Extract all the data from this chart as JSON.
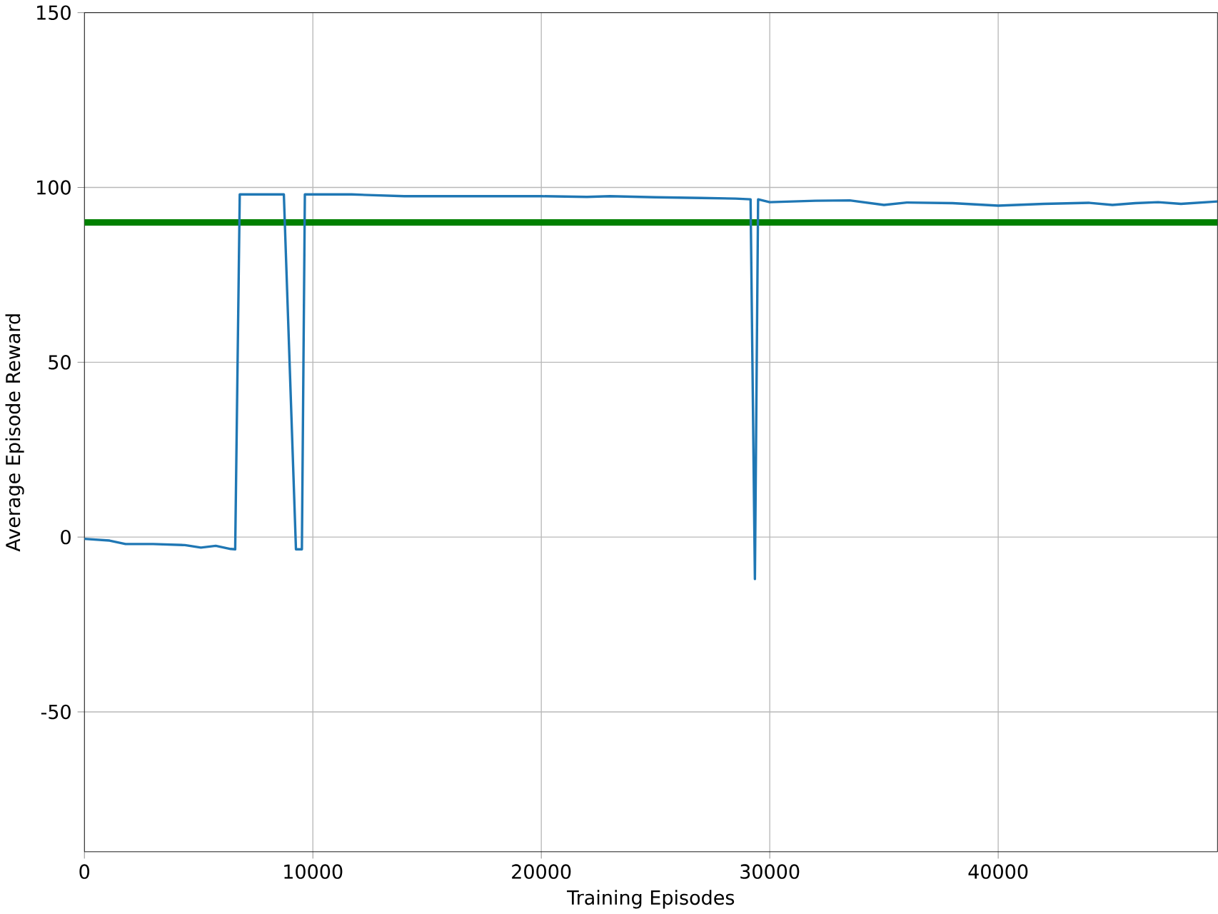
{
  "chart_data": {
    "type": "line",
    "xlabel": "Training Episodes",
    "ylabel": "Average Episode Reward",
    "xlim": [
      0,
      49600
    ],
    "ylim": [
      -90,
      150
    ],
    "xticks": [
      0,
      10000,
      20000,
      30000,
      40000
    ],
    "yticks": [
      -50,
      0,
      50,
      100,
      150
    ],
    "grid": true,
    "ref_lines": [
      {
        "axis": "y",
        "value": 90,
        "color": "#008000"
      }
    ],
    "series": [
      {
        "color": "#1f77b4",
        "x": [
          0,
          1100,
          1800,
          3000,
          4400,
          5100,
          5750,
          6400,
          6600,
          6800,
          8000,
          8730,
          9260,
          9520,
          9650,
          11700,
          14000,
          17000,
          20000,
          22000,
          23000,
          25000,
          27000,
          28500,
          29160,
          29350,
          29490,
          30000,
          32000,
          33500,
          35000,
          36000,
          38000,
          40000,
          42000,
          44000,
          45000,
          46000,
          47000,
          48000,
          49600
        ],
        "values": [
          -0.5,
          -1,
          -2,
          -2,
          -2.3,
          -3,
          -2.5,
          -3.4,
          -3.5,
          98,
          98,
          98,
          -3.5,
          -3.5,
          98,
          98,
          97.5,
          97.5,
          97.5,
          97.3,
          97.5,
          97.2,
          97,
          96.8,
          96.6,
          -12,
          96.6,
          95.8,
          96.2,
          96.3,
          95,
          95.7,
          95.5,
          94.8,
          95.3,
          95.6,
          95,
          95.5,
          95.8,
          95.3,
          96
        ]
      }
    ]
  }
}
